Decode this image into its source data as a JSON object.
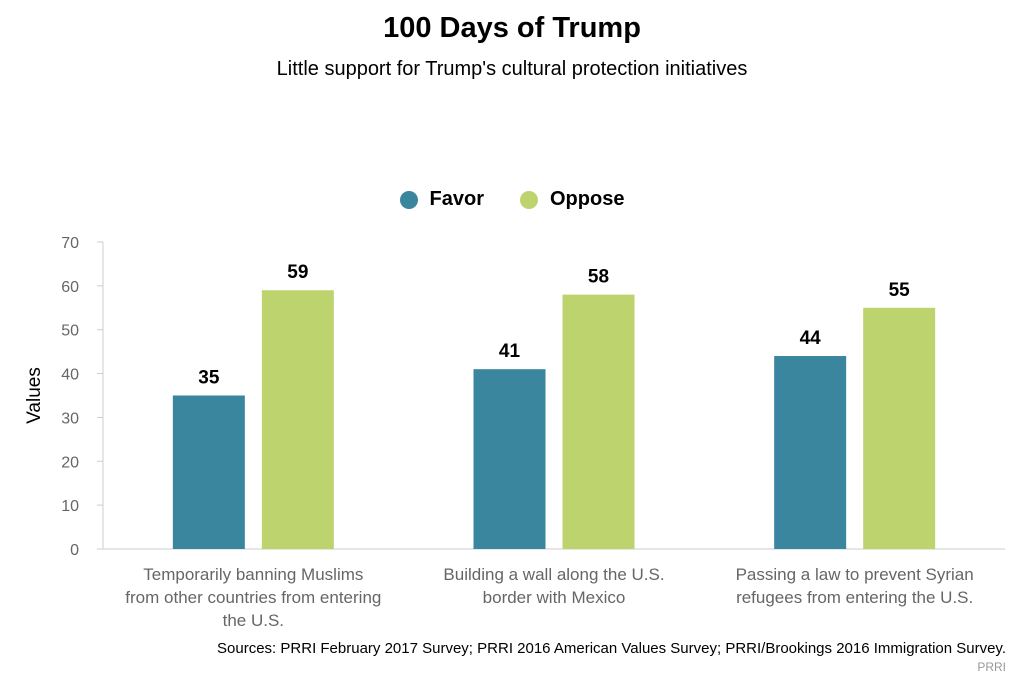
{
  "chart_data": {
    "type": "bar",
    "title": "100 Days of Trump",
    "subtitle": "Little support for Trump's cultural protection initiatives",
    "ylabel": "Values",
    "xlabel": "",
    "ylim": [
      0,
      70
    ],
    "yticks": [
      0,
      10,
      20,
      30,
      40,
      50,
      60,
      70
    ],
    "grid": false,
    "legend_position": "top-center",
    "categories": [
      [
        "Temporarily banning Muslims",
        "from other countries from entering",
        "the U.S."
      ],
      [
        "Building a wall along the U.S.",
        "border with Mexico"
      ],
      [
        "Passing a law to prevent Syrian",
        "refugees from entering the U.S."
      ]
    ],
    "series": [
      {
        "name": "Favor",
        "color": "#3a869e",
        "values": [
          35,
          41,
          44
        ]
      },
      {
        "name": "Oppose",
        "color": "#bdd46e",
        "values": [
          59,
          58,
          55
        ]
      }
    ]
  },
  "footer": {
    "source": "Sources: PRRI February 2017 Survey; PRRI 2016 American Values Survey; PRRI/Brookings 2016 Immigration Survey.",
    "credit": "PRRI"
  }
}
